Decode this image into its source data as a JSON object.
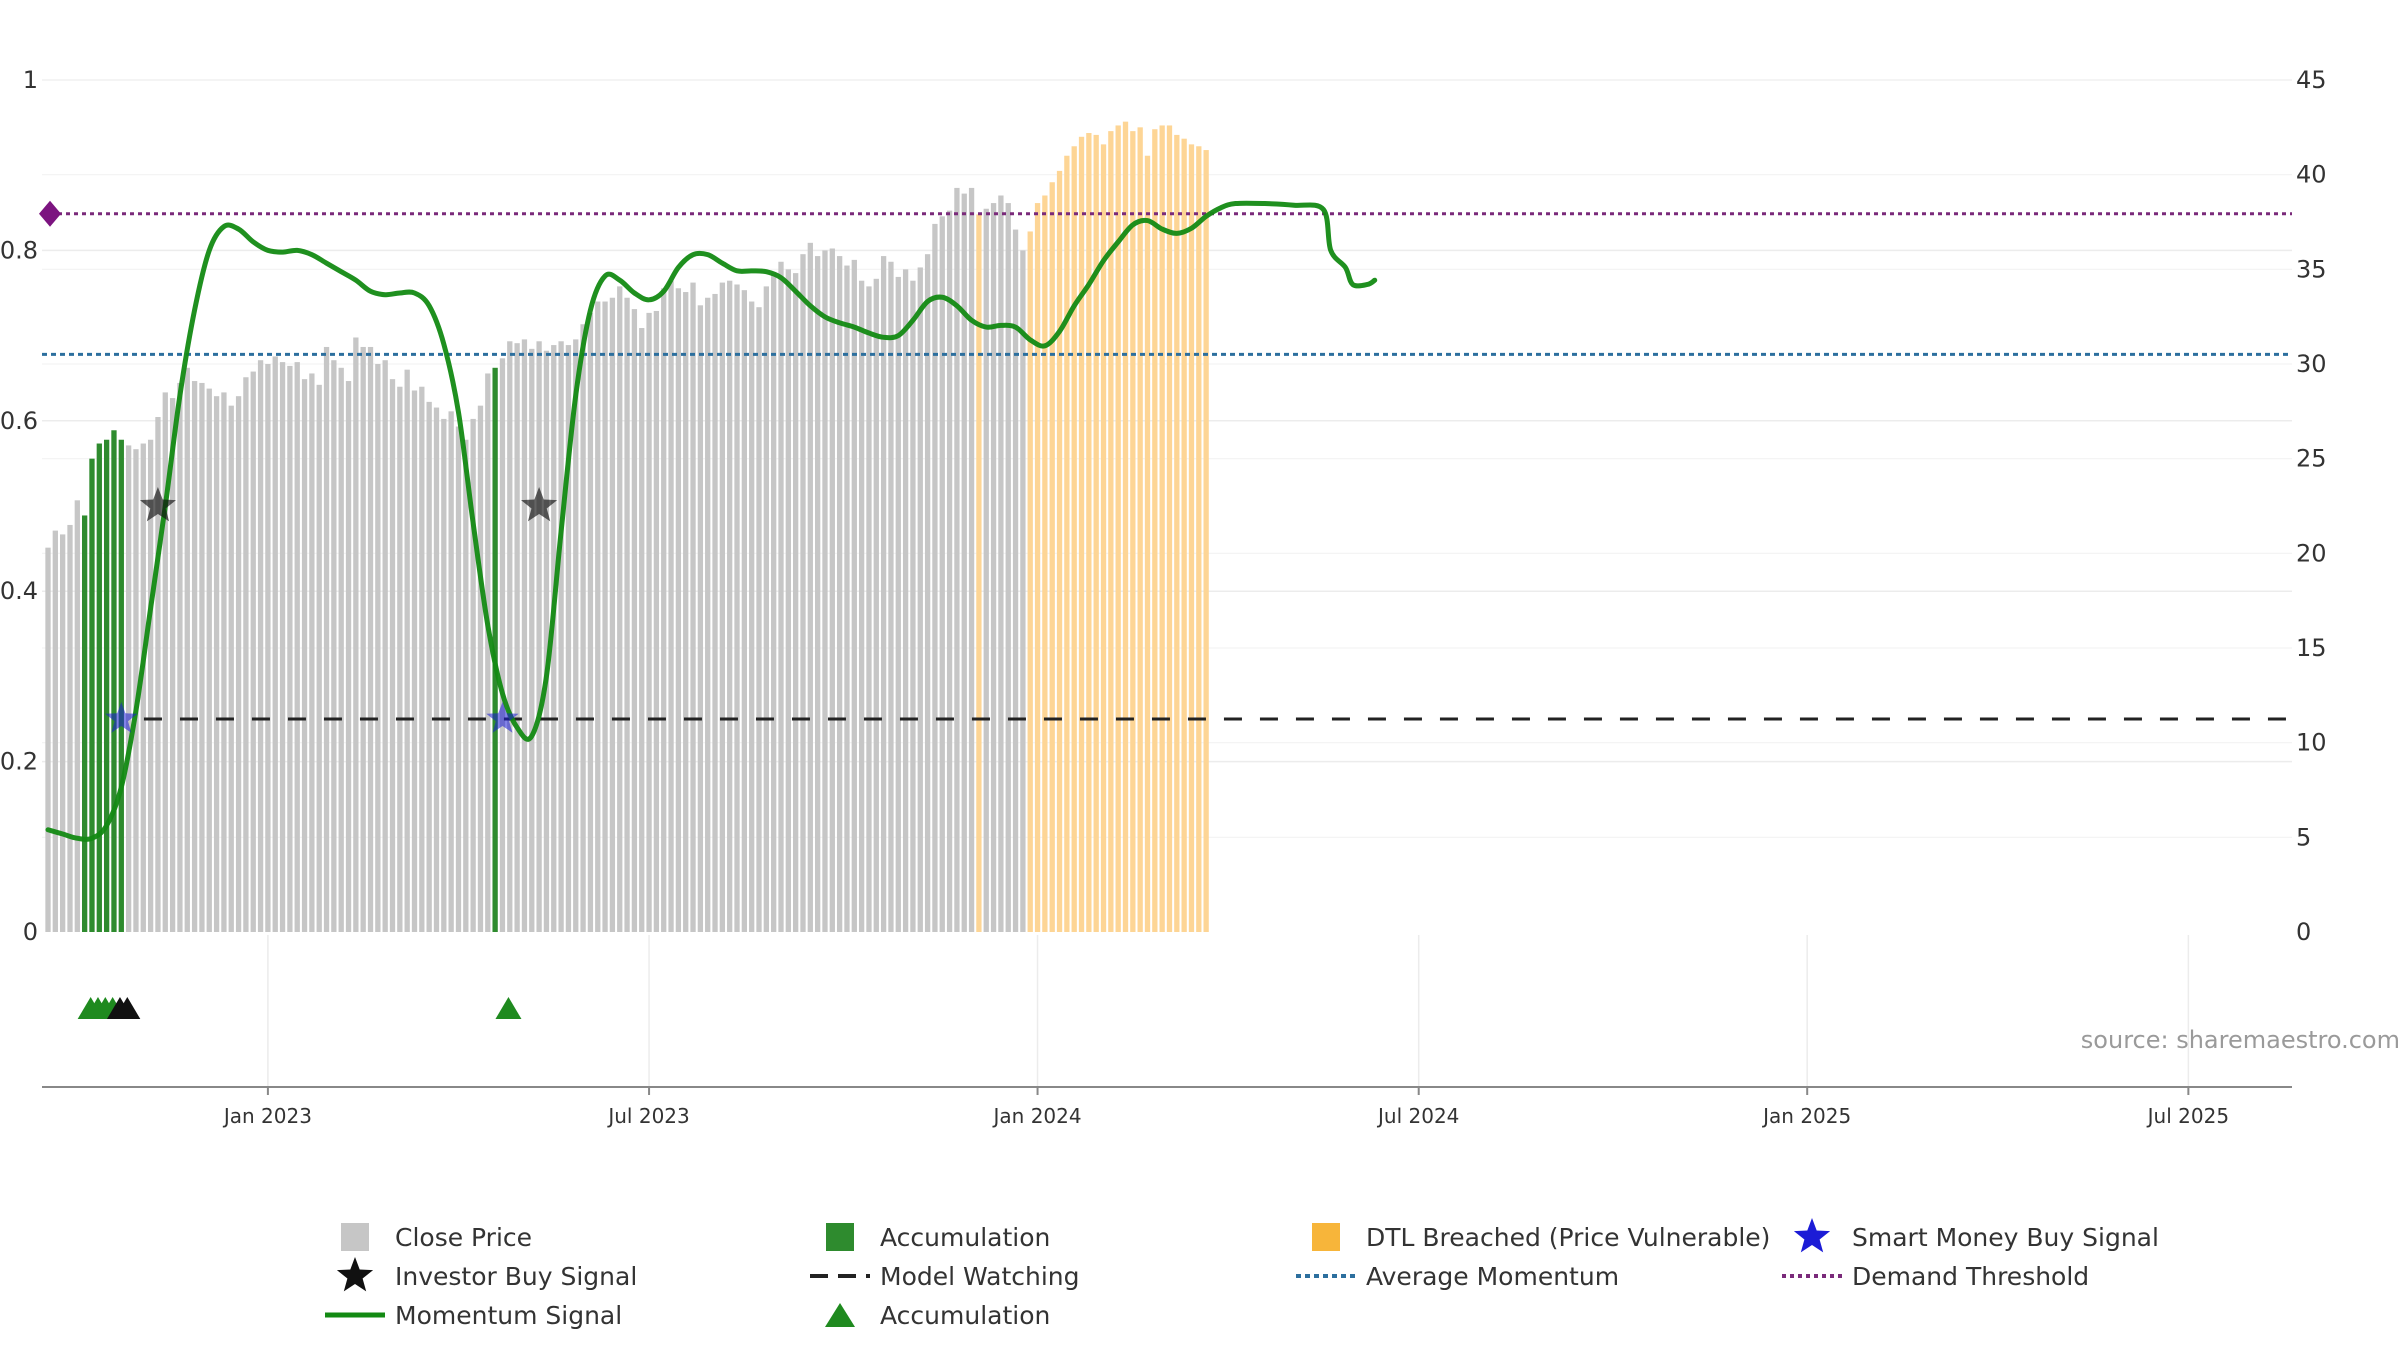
{
  "chart_data": {
    "type": "bar",
    "title": "",
    "source": "source: sharemaestro.com",
    "x_ticks": [
      "Jan 2023",
      "Jul 2023",
      "Jan 2024",
      "Jul 2024",
      "Jan 2025",
      "Jul 2025"
    ],
    "x_tick_weeks": [
      30,
      82,
      135,
      187,
      240,
      292
    ],
    "y_left": {
      "ticks": [
        "0",
        "0.2",
        "0.4",
        "0.6",
        "0.8",
        "1"
      ],
      "range": [
        0,
        1
      ]
    },
    "y_right": {
      "ticks": [
        "0",
        "5",
        "10",
        "15",
        "20",
        "25",
        "30",
        "35",
        "40",
        "45"
      ],
      "range": [
        0,
        45
      ]
    },
    "close_price": [
      20.3,
      21.2,
      21.0,
      21.5,
      22.8,
      22.0,
      25.0,
      25.8,
      26.0,
      26.5,
      26.0,
      25.7,
      25.5,
      25.8,
      26.0,
      27.2,
      28.5,
      28.2,
      29.0,
      29.8,
      29.1,
      29.0,
      28.7,
      28.3,
      28.5,
      27.8,
      28.3,
      29.3,
      29.6,
      30.2,
      30.0,
      30.4,
      30.1,
      29.9,
      30.1,
      29.2,
      29.5,
      28.9,
      30.9,
      30.2,
      29.8,
      29.1,
      31.4,
      30.9,
      30.9,
      30.0,
      30.2,
      29.2,
      28.8,
      29.7,
      28.6,
      28.8,
      28.0,
      27.7,
      27.1,
      27.5,
      26.7,
      26.0,
      27.1,
      27.8,
      29.5,
      29.8,
      30.3,
      31.2,
      31.1,
      31.3,
      30.8,
      31.2,
      30.7,
      31.0,
      31.2,
      31.0,
      31.3,
      32.1,
      32.7,
      33.3,
      33.3,
      33.5,
      34.1,
      33.5,
      32.9,
      31.9,
      32.7,
      32.8,
      34.0,
      34.4,
      34.0,
      33.8,
      34.3,
      33.1,
      33.5,
      33.7,
      34.3,
      34.4,
      34.2,
      33.9,
      33.3,
      33.0,
      34.1,
      34.8,
      35.4,
      35.0,
      34.8,
      35.8,
      36.4,
      35.7,
      36.0,
      36.1,
      35.7,
      35.2,
      35.5,
      34.4,
      34.1,
      34.5,
      35.7,
      35.4,
      34.6,
      35.0,
      34.4,
      35.1,
      35.8,
      37.4,
      37.8,
      38.1,
      39.3,
      39.0,
      39.3,
      37.9,
      38.2,
      38.5,
      38.9,
      38.5,
      37.1,
      36.0,
      37.0,
      38.5,
      38.9,
      39.6,
      40.2,
      41.0,
      41.5,
      42.0,
      42.2,
      42.1,
      41.6,
      42.3,
      42.6,
      42.8,
      42.3,
      42.5,
      41.0,
      42.4,
      42.6,
      42.6,
      42.1,
      41.9,
      41.6,
      41.5,
      41.3
    ],
    "accumulation_weeks": [
      5,
      6,
      7,
      8,
      9,
      10,
      61
    ],
    "dtl_breached_weeks_ranges": [
      [
        127,
        127
      ],
      [
        134,
        160
      ]
    ],
    "momentum_signal": [
      [
        0,
        0.12
      ],
      [
        2,
        0.115
      ],
      [
        4,
        0.11
      ],
      [
        6,
        0.11
      ],
      [
        8,
        0.125
      ],
      [
        10,
        0.17
      ],
      [
        12,
        0.26
      ],
      [
        14,
        0.38
      ],
      [
        16,
        0.5
      ],
      [
        18,
        0.63
      ],
      [
        20,
        0.73
      ],
      [
        22,
        0.8
      ],
      [
        24,
        0.828
      ],
      [
        26,
        0.825
      ],
      [
        28,
        0.81
      ],
      [
        30,
        0.8
      ],
      [
        32,
        0.798
      ],
      [
        34,
        0.8
      ],
      [
        36,
        0.795
      ],
      [
        38,
        0.785
      ],
      [
        40,
        0.775
      ],
      [
        42,
        0.765
      ],
      [
        44,
        0.752
      ],
      [
        46,
        0.748
      ],
      [
        48,
        0.75
      ],
      [
        50,
        0.75
      ],
      [
        52,
        0.735
      ],
      [
        54,
        0.69
      ],
      [
        56,
        0.61
      ],
      [
        58,
        0.48
      ],
      [
        60,
        0.36
      ],
      [
        62,
        0.28
      ],
      [
        64,
        0.24
      ],
      [
        66,
        0.23
      ],
      [
        68,
        0.3
      ],
      [
        70,
        0.47
      ],
      [
        72,
        0.63
      ],
      [
        74,
        0.73
      ],
      [
        76,
        0.77
      ],
      [
        78,
        0.765
      ],
      [
        80,
        0.75
      ],
      [
        82,
        0.742
      ],
      [
        84,
        0.752
      ],
      [
        86,
        0.78
      ],
      [
        88,
        0.795
      ],
      [
        90,
        0.795
      ],
      [
        92,
        0.785
      ],
      [
        94,
        0.776
      ],
      [
        96,
        0.776
      ],
      [
        98,
        0.775
      ],
      [
        100,
        0.768
      ],
      [
        102,
        0.752
      ],
      [
        104,
        0.735
      ],
      [
        106,
        0.722
      ],
      [
        108,
        0.715
      ],
      [
        110,
        0.71
      ],
      [
        112,
        0.703
      ],
      [
        114,
        0.698
      ],
      [
        116,
        0.7
      ],
      [
        118,
        0.718
      ],
      [
        120,
        0.74
      ],
      [
        122,
        0.745
      ],
      [
        124,
        0.735
      ],
      [
        126,
        0.718
      ],
      [
        128,
        0.71
      ],
      [
        130,
        0.712
      ],
      [
        132,
        0.71
      ],
      [
        134,
        0.695
      ],
      [
        136,
        0.688
      ],
      [
        138,
        0.705
      ],
      [
        140,
        0.735
      ],
      [
        142,
        0.76
      ],
      [
        144,
        0.788
      ],
      [
        146,
        0.81
      ],
      [
        148,
        0.83
      ],
      [
        150,
        0.835
      ],
      [
        152,
        0.825
      ],
      [
        154,
        0.82
      ],
      [
        156,
        0.826
      ],
      [
        158,
        0.84
      ],
      [
        160,
        0.85
      ],
      [
        162,
        0.855
      ],
      [
        166,
        0.855
      ],
      [
        170,
        0.853
      ],
      [
        174,
        0.848
      ],
      [
        175,
        0.8
      ],
      [
        177,
        0.78
      ],
      [
        178,
        0.76
      ],
      [
        180,
        0.76
      ],
      [
        181,
        0.765
      ]
    ],
    "average_momentum": 0.678,
    "demand_threshold": 0.843,
    "model_watching_level": 0.25,
    "investor_buy_signals": [
      {
        "week": 15,
        "y": 0.5
      },
      {
        "week": 67,
        "y": 0.5
      }
    ],
    "smart_money_buy_signals": [
      {
        "week": 10,
        "y": 0.25
      },
      {
        "week": 62,
        "y": 0.25
      }
    ],
    "accumulation_markers_green": [
      5,
      6,
      7,
      8,
      62
    ],
    "accumulation_markers_black": [
      9,
      10
    ],
    "legend": {
      "close_price": "Close Price",
      "accumulation_bar": "Accumulation",
      "dtl_breached": "DTL Breached (Price Vulnerable)",
      "smart_money": "Smart Money Buy Signal",
      "investor_buy": "Investor Buy Signal",
      "model_watching": "Model Watching",
      "average_momentum": "Average Momentum",
      "demand_threshold": "Demand Threshold",
      "momentum_signal": "Momentum Signal",
      "accumulation_marker": "Accumulation"
    },
    "colors": {
      "close_price": "#c6c6c6",
      "accumulation": "#2e8b2e",
      "dtl": "#fdd595",
      "momentum": "#138a13",
      "average_momentum": "#2c6f9e",
      "demand_threshold": "#7a2a7a",
      "smart_money": "#1c1cd6",
      "investor": "#111111",
      "marker_green": "#1f8a1f"
    }
  }
}
